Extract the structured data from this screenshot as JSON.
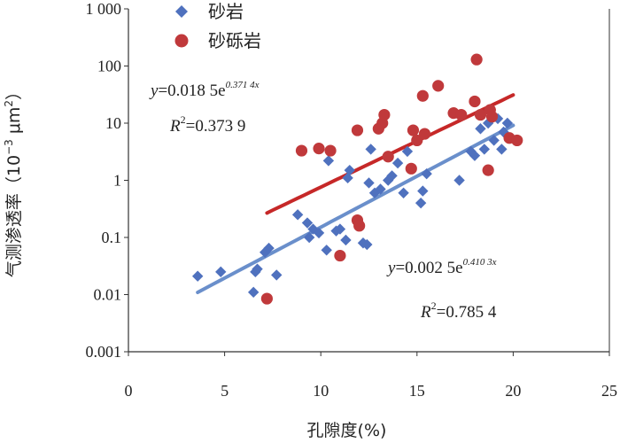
{
  "chart_data": {
    "type": "scatter",
    "xlabel": "孔隙度(%)",
    "ylabel": "气测渗透率（10⁻³ μm²）",
    "ylabel_parts": {
      "base": "气测渗透率（",
      "unit_pow_base": "10",
      "unit_pow_exp": "−3",
      "unit_mu": "μm",
      "unit_sq": "2",
      "close": "）"
    },
    "xlim": [
      0,
      25
    ],
    "ylim": [
      0.001,
      1000
    ],
    "yscale": "log",
    "x_ticks": [
      0,
      5,
      10,
      15,
      20,
      25
    ],
    "x_tick_labels": [
      "0",
      "5",
      "10",
      "15",
      "20",
      "25"
    ],
    "y_ticks": [
      0.001,
      0.01,
      0.1,
      1,
      10,
      100,
      1000
    ],
    "y_tick_labels": [
      "0.001",
      "0.01",
      "0.1",
      "1",
      "10",
      "100",
      "1 000"
    ],
    "grid": false,
    "legend": "top-left",
    "series": [
      {
        "name": "砂岩",
        "marker": "diamond",
        "color": "#4F71BE",
        "trend_color": "#6A8FCB",
        "trend": {
          "a": 0.0025,
          "b": 0.4103,
          "x_range": [
            3.6,
            20
          ],
          "equation": "y=0.002 5e",
          "exponent": "0.410 3x",
          "r2_label": "R",
          "r2_sup": "2",
          "r2_value": "=0.785 4"
        },
        "points": [
          [
            3.6,
            0.021
          ],
          [
            4.8,
            0.025
          ],
          [
            6.5,
            0.011
          ],
          [
            6.6,
            0.025
          ],
          [
            6.7,
            0.028
          ],
          [
            7.1,
            0.055
          ],
          [
            7.3,
            0.065
          ],
          [
            7.7,
            0.022
          ],
          [
            8.8,
            0.25
          ],
          [
            9.3,
            0.18
          ],
          [
            9.4,
            0.1
          ],
          [
            9.6,
            0.14
          ],
          [
            9.9,
            0.12
          ],
          [
            10.3,
            0.06
          ],
          [
            10.4,
            2.2
          ],
          [
            10.8,
            0.13
          ],
          [
            11.0,
            0.14
          ],
          [
            11.3,
            0.09
          ],
          [
            11.4,
            1.1
          ],
          [
            11.5,
            1.5
          ],
          [
            12.2,
            0.08
          ],
          [
            12.4,
            0.075
          ],
          [
            12.5,
            0.9
          ],
          [
            12.6,
            3.5
          ],
          [
            12.8,
            0.6
          ],
          [
            13.1,
            0.7
          ],
          [
            13.5,
            1.0
          ],
          [
            13.7,
            1.2
          ],
          [
            14.0,
            2.0
          ],
          [
            14.3,
            0.6
          ],
          [
            14.5,
            3.2
          ],
          [
            15.2,
            0.4
          ],
          [
            15.3,
            0.65
          ],
          [
            15.5,
            1.3
          ],
          [
            17.2,
            1.0
          ],
          [
            17.8,
            3.2
          ],
          [
            18.0,
            2.7
          ],
          [
            18.3,
            8.0
          ],
          [
            18.5,
            3.5
          ],
          [
            18.7,
            10.0
          ],
          [
            19.0,
            5.0
          ],
          [
            19.2,
            12.0
          ],
          [
            19.4,
            3.5
          ],
          [
            19.5,
            7.0
          ],
          [
            19.7,
            10.0
          ]
        ]
      },
      {
        "name": "砂砾岩",
        "marker": "circle",
        "color": "#C0393B",
        "trend_color": "#C62828",
        "trend": {
          "a": 0.0185,
          "b": 0.3714,
          "x_range": [
            7.2,
            20
          ],
          "equation": "y=0.018 5e",
          "exponent": "0.371 4x",
          "r2_label": "R",
          "r2_sup": "2",
          "r2_value": "=0.373 9"
        },
        "points": [
          [
            7.2,
            0.0085
          ],
          [
            9.0,
            3.3
          ],
          [
            9.9,
            3.6
          ],
          [
            10.5,
            3.3
          ],
          [
            11.0,
            0.048
          ],
          [
            11.9,
            0.2
          ],
          [
            12.0,
            0.16
          ],
          [
            11.9,
            7.5
          ],
          [
            13.0,
            8.0
          ],
          [
            13.2,
            10.0
          ],
          [
            13.3,
            14.0
          ],
          [
            13.5,
            2.6
          ],
          [
            14.7,
            1.6
          ],
          [
            14.8,
            7.5
          ],
          [
            15.0,
            5.0
          ],
          [
            15.3,
            30.0
          ],
          [
            15.4,
            6.5
          ],
          [
            16.1,
            45.0
          ],
          [
            16.9,
            15.0
          ],
          [
            17.3,
            14.0
          ],
          [
            18.0,
            24.0
          ],
          [
            18.1,
            130.0
          ],
          [
            18.3,
            14.0
          ],
          [
            18.7,
            1.5
          ],
          [
            18.8,
            17.0
          ],
          [
            18.9,
            13.0
          ],
          [
            19.8,
            5.5
          ],
          [
            20.2,
            5.0
          ]
        ]
      }
    ]
  }
}
